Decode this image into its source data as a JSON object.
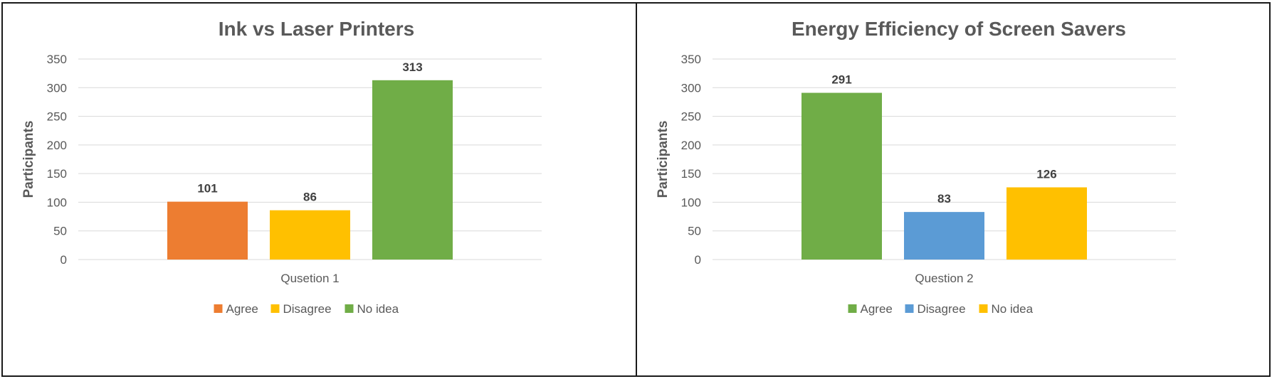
{
  "chart_data": [
    {
      "type": "bar",
      "title": "Ink vs Laser Printers",
      "xlabel": "Qusetion 1",
      "ylabel": "Participants",
      "ylim": [
        0,
        350
      ],
      "yticks": [
        0,
        50,
        100,
        150,
        200,
        250,
        300,
        350
      ],
      "categories": [
        "Qusetion 1"
      ],
      "series": [
        {
          "name": "Agree",
          "values": [
            101
          ],
          "color": "#ED7D31"
        },
        {
          "name": "Disagree",
          "values": [
            86
          ],
          "color": "#FFC000"
        },
        {
          "name": "No idea",
          "values": [
            313
          ],
          "color": "#70AD47"
        }
      ],
      "grid": true,
      "legend": "bottom"
    },
    {
      "type": "bar",
      "title": "Energy Efficiency of Screen Savers",
      "xlabel": "Question 2",
      "ylabel": "Participants",
      "ylim": [
        0,
        350
      ],
      "yticks": [
        0,
        50,
        100,
        150,
        200,
        250,
        300,
        350
      ],
      "categories": [
        "Question 2"
      ],
      "series": [
        {
          "name": "Agree",
          "values": [
            291
          ],
          "color": "#70AD47"
        },
        {
          "name": "Disagree",
          "values": [
            83
          ],
          "color": "#5B9BD5"
        },
        {
          "name": "No idea",
          "values": [
            126
          ],
          "color": "#FFC000"
        }
      ],
      "grid": true,
      "legend": "bottom"
    }
  ]
}
